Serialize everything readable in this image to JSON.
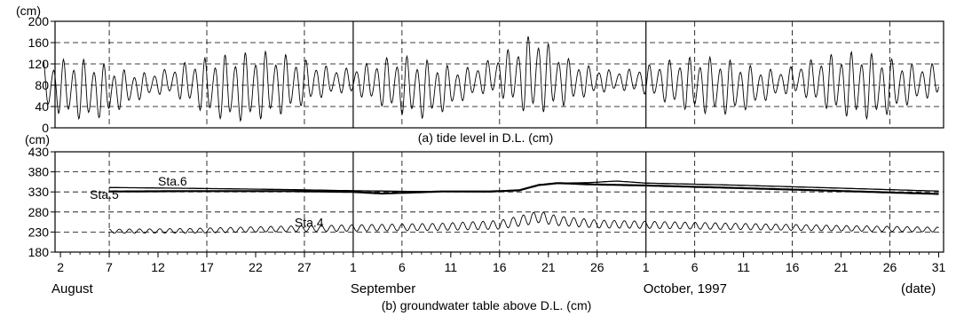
{
  "chart_data": [
    {
      "type": "line",
      "caption": "(a) tide level in D.L. (cm)",
      "unit_label": "(cm)",
      "ylim": [
        0,
        200
      ],
      "yticks": [
        0,
        40,
        80,
        120,
        160,
        200
      ],
      "ytick_labels": [
        "0",
        "40",
        "80",
        "120",
        "160",
        "200"
      ],
      "xlim": [
        "1997-07-31",
        "1997-10-31"
      ],
      "grid": true,
      "series": [
        {
          "x": [
            "1997-08-01",
            "1997-08-03",
            "1997-08-05",
            "1997-08-07",
            "1997-08-09",
            "1997-08-11",
            "1997-08-13",
            "1997-08-15",
            "1997-08-17",
            "1997-08-19",
            "1997-08-21",
            "1997-08-23",
            "1997-08-25",
            "1997-08-27",
            "1997-08-29",
            "1997-08-31",
            "1997-09-02",
            "1997-09-04",
            "1997-09-06",
            "1997-09-08",
            "1997-09-10",
            "1997-09-12",
            "1997-09-14",
            "1997-09-16",
            "1997-09-18",
            "1997-09-19",
            "1997-09-20",
            "1997-09-21",
            "1997-09-23",
            "1997-09-25",
            "1997-09-27",
            "1997-09-29",
            "1997-10-01",
            "1997-10-03",
            "1997-10-05",
            "1997-10-07",
            "1997-10-09",
            "1997-10-11",
            "1997-10-13",
            "1997-10-15",
            "1997-10-17",
            "1997-10-19",
            "1997-10-21",
            "1997-10-23",
            "1997-10-25",
            "1997-10-27",
            "1997-10-29",
            "1997-10-31"
          ],
          "high": [
            128,
            132,
            130,
            118,
            108,
            104,
            112,
            126,
            134,
            140,
            144,
            146,
            140,
            130,
            118,
            112,
            120,
            132,
            138,
            132,
            122,
            112,
            120,
            140,
            160,
            176,
            182,
            160,
            132,
            118,
            110,
            110,
            118,
            128,
            134,
            136,
            132,
            122,
            112,
            110,
            124,
            136,
            144,
            146,
            138,
            126,
            118,
            124
          ],
          "low": [
            28,
            14,
            8,
            20,
            40,
            58,
            62,
            44,
            20,
            8,
            6,
            12,
            22,
            40,
            56,
            64,
            54,
            36,
            20,
            12,
            24,
            46,
            62,
            56,
            30,
            18,
            20,
            26,
            40,
            58,
            66,
            68,
            60,
            44,
            30,
            22,
            20,
            28,
            46,
            62,
            58,
            36,
            18,
            10,
            14,
            32,
            50,
            56
          ]
        }
      ]
    },
    {
      "type": "line",
      "caption": "(b) groundwater table above D.L. (cm)",
      "unit_label": "(cm)",
      "ylim": [
        180,
        430
      ],
      "yticks": [
        180,
        230,
        280,
        330,
        380,
        430
      ],
      "ytick_labels": [
        "180",
        "230",
        "280",
        "330",
        "380",
        "430"
      ],
      "xlim": [
        "1997-07-31",
        "1997-10-31"
      ],
      "grid": true,
      "series": [
        {
          "name": "Sta.6",
          "x": [
            "1997-08-07",
            "1997-08-15",
            "1997-08-25",
            "1997-09-01",
            "1997-09-08",
            "1997-09-15",
            "1997-09-18",
            "1997-09-20",
            "1997-09-22",
            "1997-09-25",
            "1997-09-28",
            "1997-10-01",
            "1997-10-10",
            "1997-10-20",
            "1997-10-31"
          ],
          "y": [
            341,
            339,
            336,
            333,
            331,
            330,
            334,
            348,
            352,
            353,
            357,
            352,
            347,
            340,
            332
          ]
        },
        {
          "name": "Sta.5",
          "x": [
            "1997-08-07",
            "1997-08-15",
            "1997-08-25",
            "1997-09-01",
            "1997-09-04",
            "1997-09-10",
            "1997-09-15",
            "1997-09-18",
            "1997-09-20",
            "1997-09-22",
            "1997-09-25",
            "1997-10-01",
            "1997-10-10",
            "1997-10-20",
            "1997-10-31"
          ],
          "y": [
            331,
            332,
            332,
            330,
            326,
            331,
            331,
            334,
            347,
            352,
            349,
            346,
            340,
            333,
            325
          ]
        },
        {
          "name": "Sta.4",
          "x": [
            "1997-08-07",
            "1997-08-15",
            "1997-08-25",
            "1997-09-01",
            "1997-09-10",
            "1997-09-16",
            "1997-09-19",
            "1997-09-20",
            "1997-09-22",
            "1997-09-26",
            "1997-10-01",
            "1997-10-10",
            "1997-10-20",
            "1997-10-31"
          ],
          "mean": [
            232,
            233,
            238,
            240,
            243,
            248,
            262,
            268,
            258,
            250,
            248,
            244,
            240,
            236
          ],
          "amplitude": [
            5,
            6,
            7,
            8,
            9,
            11,
            14,
            15,
            12,
            10,
            9,
            8,
            7,
            6
          ]
        }
      ]
    }
  ],
  "x_axis": {
    "tick_labels": [
      "2",
      "7",
      "12",
      "17",
      "22",
      "27",
      "1",
      "6",
      "11",
      "16",
      "21",
      "26",
      "1",
      "6",
      "11",
      "16",
      "21",
      "26",
      "31"
    ],
    "tick_dates": [
      "1997-08-02",
      "1997-08-07",
      "1997-08-12",
      "1997-08-17",
      "1997-08-22",
      "1997-08-27",
      "1997-09-01",
      "1997-09-06",
      "1997-09-11",
      "1997-09-16",
      "1997-09-21",
      "1997-09-26",
      "1997-10-01",
      "1997-10-06",
      "1997-10-11",
      "1997-10-16",
      "1997-10-21",
      "1997-10-26",
      "1997-10-31"
    ],
    "month_labels": [
      "August",
      "September",
      "October, 1997"
    ],
    "unit": "(date)"
  }
}
